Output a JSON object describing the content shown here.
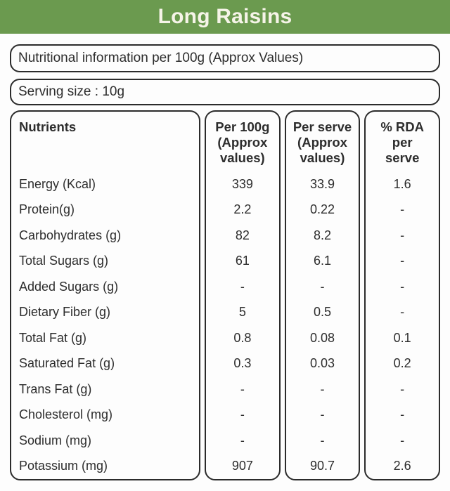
{
  "header": {
    "title": "Long Raisins",
    "band_color": "#6b9a4f",
    "title_color": "#f6f4e8"
  },
  "info_boxes": {
    "nutritional_info": "Nutritional information per 100g (Approx Values)",
    "serving_size": "Serving size : 10g"
  },
  "table": {
    "columns": {
      "nutrients": "Nutrients",
      "per_100g": "Per 100g\n(Approx\nvalues)",
      "per_serve": "Per serve\n(Approx\nvalues)",
      "rda": "% RDA\nper\nserve"
    },
    "rows": [
      {
        "label": "Energy (Kcal)",
        "per_100g": "339",
        "per_serve": "33.9",
        "rda": "1.6"
      },
      {
        "label": "Protein(g)",
        "per_100g": "2.2",
        "per_serve": "0.22",
        "rda": "-"
      },
      {
        "label": "Carbohydrates (g)",
        "per_100g": "82",
        "per_serve": "8.2",
        "rda": "-"
      },
      {
        "label": "Total Sugars (g)",
        "per_100g": "61",
        "per_serve": "6.1",
        "rda": "-"
      },
      {
        "label": "Added Sugars (g)",
        "per_100g": "-",
        "per_serve": "-",
        "rda": "-"
      },
      {
        "label": "Dietary Fiber (g)",
        "per_100g": "5",
        "per_serve": "0.5",
        "rda": "-"
      },
      {
        "label": "Total Fat (g)",
        "per_100g": "0.8",
        "per_serve": "0.08",
        "rda": "0.1"
      },
      {
        "label": "Saturated Fat (g)",
        "per_100g": "0.3",
        "per_serve": "0.03",
        "rda": "0.2"
      },
      {
        "label": "Trans Fat (g)",
        "per_100g": "-",
        "per_serve": "-",
        "rda": "-"
      },
      {
        "label": "Cholesterol (mg)",
        "per_100g": "-",
        "per_serve": "-",
        "rda": "-"
      },
      {
        "label": "Sodium (mg)",
        "per_100g": "-",
        "per_serve": "-",
        "rda": "-"
      },
      {
        "label": "Potassium (mg)",
        "per_100g": "907",
        "per_serve": "90.7",
        "rda": "2.6"
      }
    ]
  }
}
